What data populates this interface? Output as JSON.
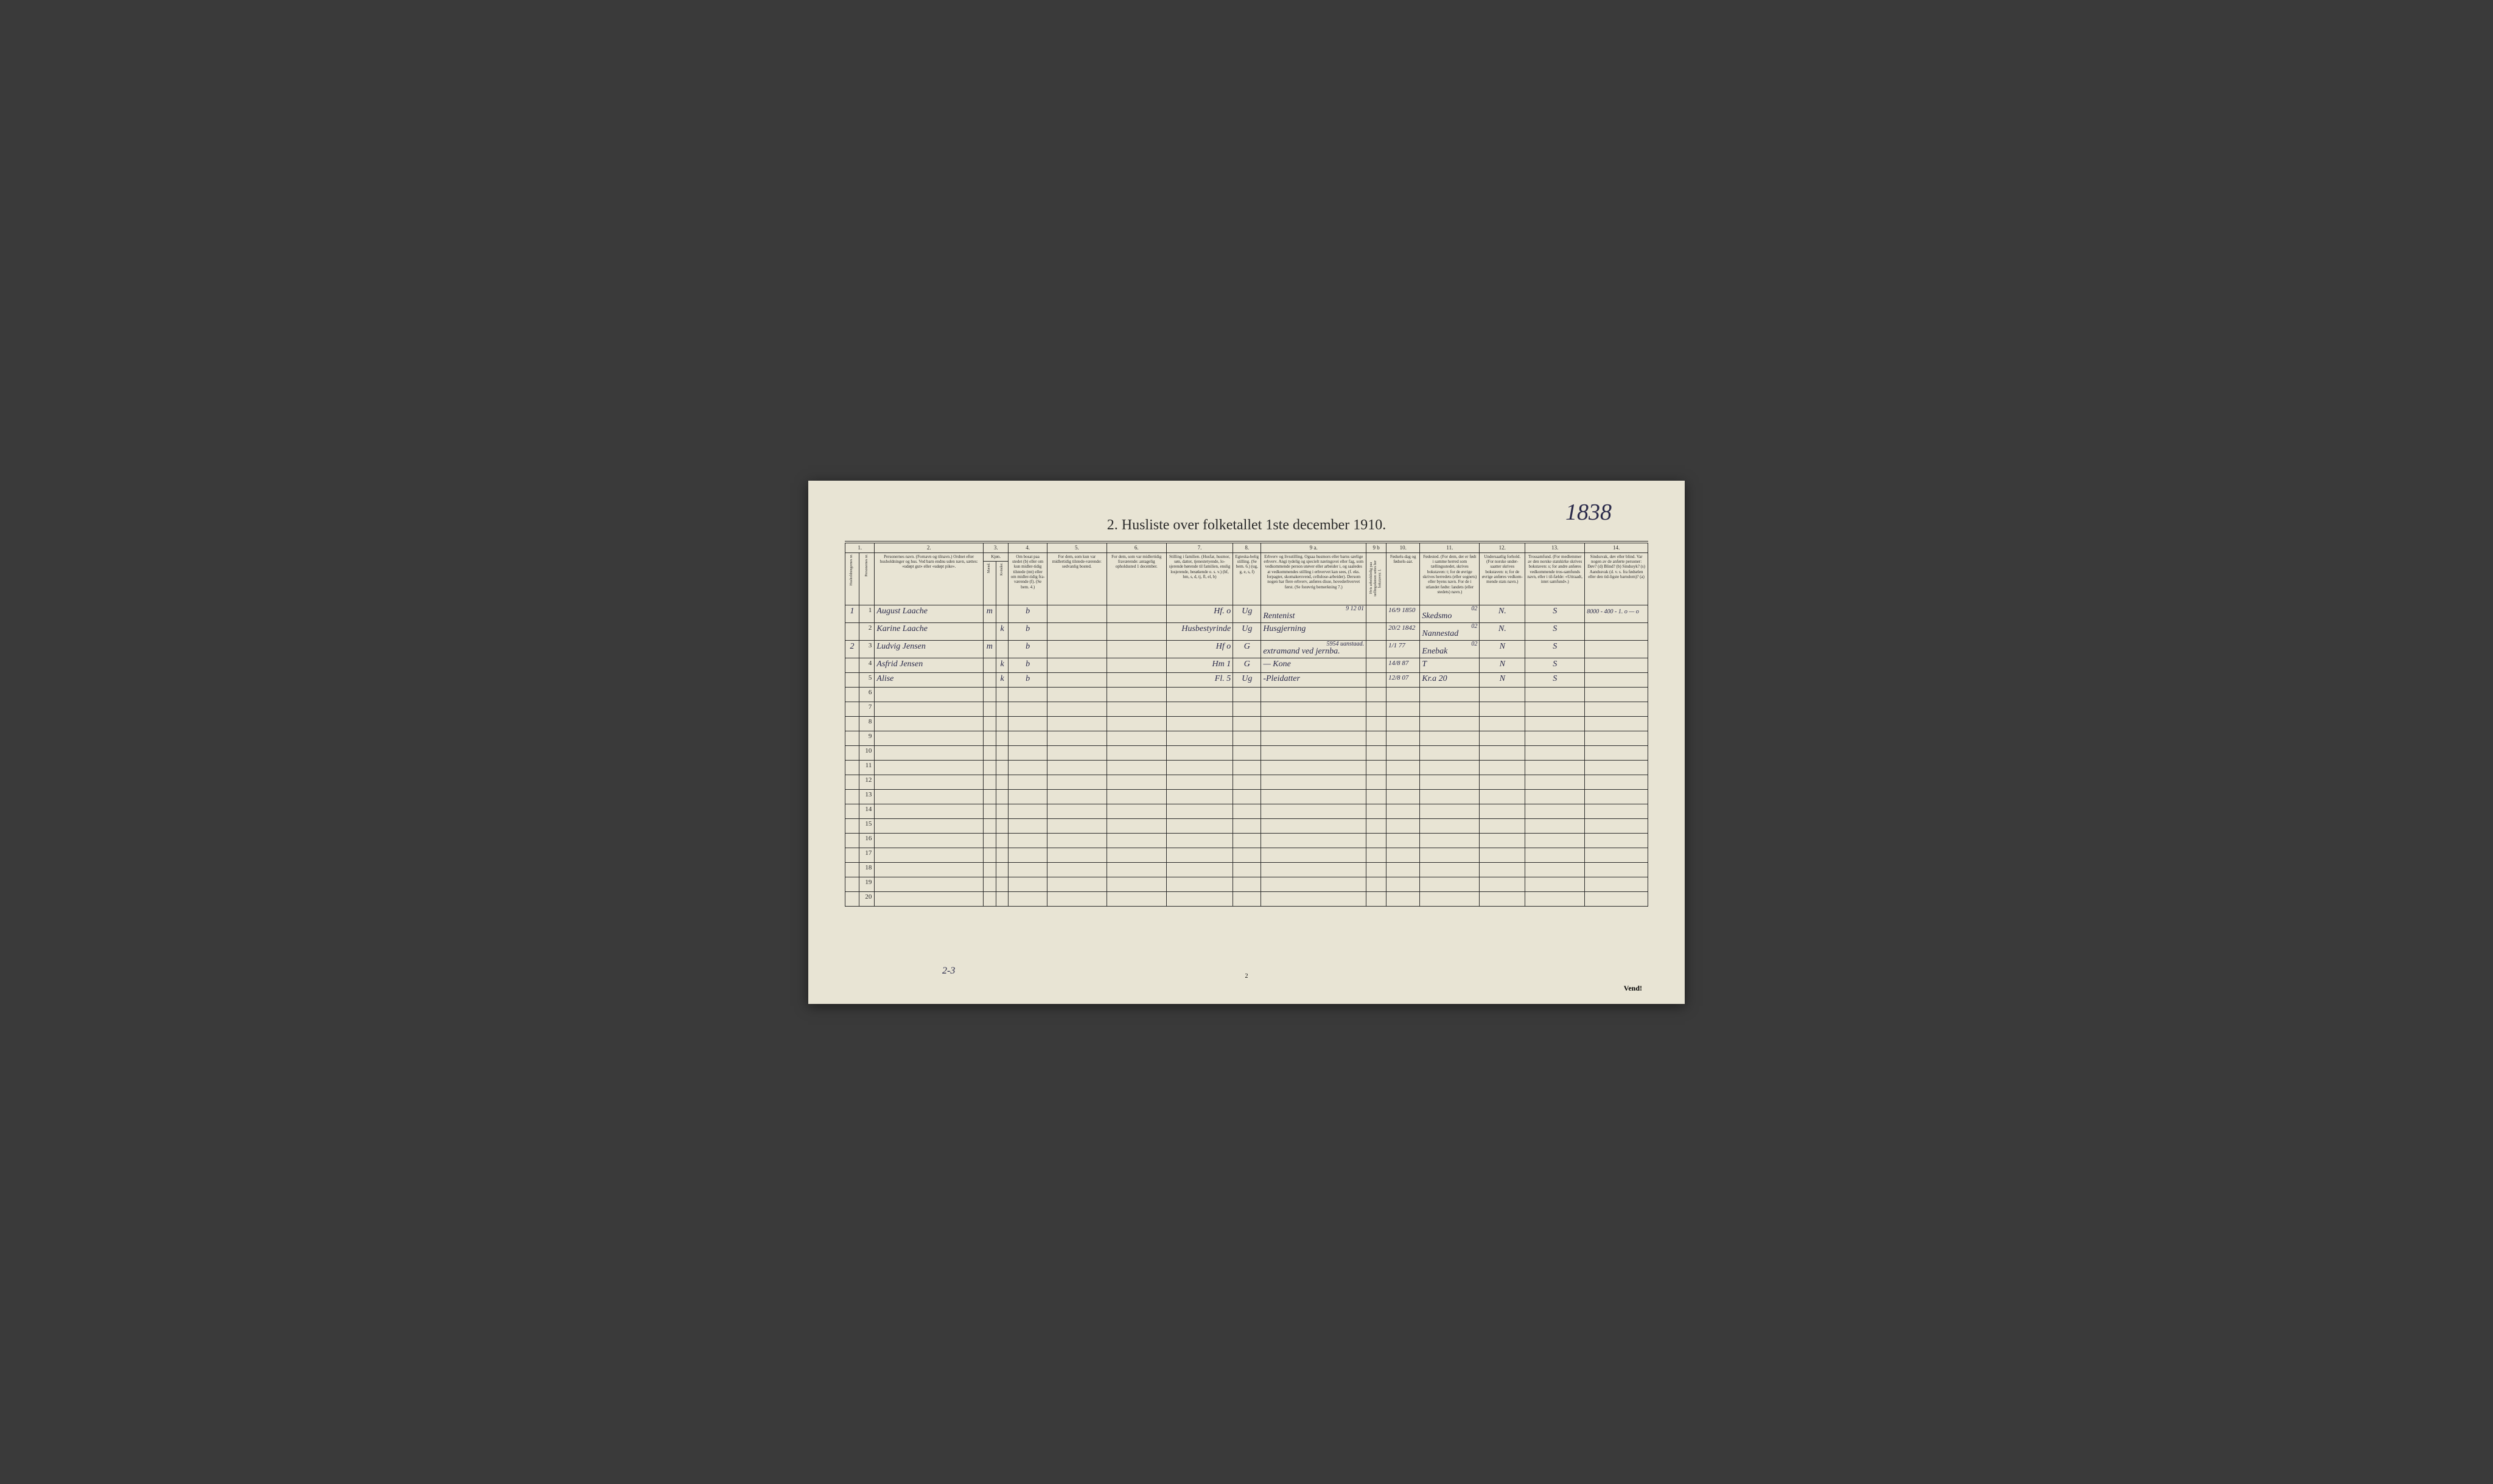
{
  "annotation_number": "1838",
  "title": "2.  Husliste over folketallet 1ste december 1910.",
  "column_numbers": [
    "1.",
    "2.",
    "3.",
    "4.",
    "5.",
    "6.",
    "7.",
    "8.",
    "9 a.",
    "9 b",
    "10.",
    "11.",
    "12.",
    "13.",
    "14."
  ],
  "headers": {
    "c1a": "Husholdningernes nr.",
    "c1b": "Personernes nr.",
    "c2": "Personernes navn.\n(Fornavn og tilnavn.)\nOrdnet efter husholdninger og hus.\nVed barn endnu uden navn, sættes: «udøpt gut» eller «udøpt pike».",
    "c3": "Kjøn.",
    "c3m": "Mænd.",
    "c3k": "Kvinder.",
    "c3mk": "m.   k.",
    "c4": "Om bosat paa stedet (b) eller om kun midler-tidig tilstede (mt) eller om midler-tidig fra-værende (f).\n(Se bem. 4.)",
    "c5": "For dem, som kun var midlertidig tilstede-værende:\nsedvanlig bosted.",
    "c6": "For dem, som var midlertidig fraværende:\nantagelig opholdssted 1 december.",
    "c7": "Stilling i familien.\n(Husfar, husmor, søn, datter, tjenestetyende, lo-sjerende hørende til familien, enslig losjerende, besøkende o. s. v.)\n(hf, hm, s, d, tj, fl, el, b)",
    "c8": "Egteska-belig stilling.\n(Se bem. 6.)\n(ug, g, e, s, f)",
    "c9a": "Erhverv og livsstilling.\nOgsaa husmors eller barns særlige erhverv.\nAngi tydelig og specielt næringsvei eller fag, som vedkommende person utøver eller arbeider i, og saaledes at vedkommendes stilling i erhvervet kan sees, (f. eks. forpagter, skomakersvend, cellulose-arbeider). Dersom nogen har flere erhverv, anføres disse, hovederhvervet først.\n(Se forøvrig bemerkning 7.)",
    "c9b": "Hvis arbeidsledig paa tællingsdatoen settes her bokstaven: l.",
    "c10": "Fødsels-dag og fødsels-aar.",
    "c11": "Fødested.\n(For dem, der er født i samme herred som tællingsstedet, skrives bokstaven: t; for de øvrige skrives herredets (eller sognets) eller byens navn.\nFor de i utlandet fødte: landets (eller stedets) navn.)",
    "c12": "Undersaatlig forhold.\n(For norske under-saatter skrives bokstaven: n; for de øvrige anføres vedkom-mende stats navn.)",
    "c13": "Trossamfund.\n(For medlemmer av den norske statskirke skrives bokstaven: s; for andre anføres vedkommende tros-samfunds navn, eller i til-fælde: «Uttraadt, intet samfund».)",
    "c14": "Sindssvak, døv eller blind.\nVar nogen av de anførte personer:\nDøv?         (d)\nBlind?       (b)\nSindssyk?   (s)\nAandssvak (d. v. s. fra fødselen eller den tid-ligste barndom)?  (a)"
  },
  "rows": [
    {
      "hh": "1",
      "pn": "1",
      "name": "August Laache",
      "m": "m",
      "k": "",
      "res": "b",
      "c5": "",
      "c6": "",
      "fam": "Hf.      o",
      "mar": "Ug",
      "occ": "Rentenist",
      "wl": "",
      "dob": "16/9 1850",
      "pob": "Skedsmo",
      "nat": "N.",
      "rel": "S",
      "dis": "",
      "topnote": "9 12 01",
      "pobnote": "02",
      "extra": "8000 - 400 - 1.    o  —  o"
    },
    {
      "hh": "",
      "pn": "2",
      "name": "Karine Laache",
      "m": "",
      "k": "k",
      "res": "b",
      "c5": "",
      "c6": "",
      "fam": "Husbestyrinde",
      "mar": "Ug",
      "occ": "Husgjerning",
      "wl": "",
      "dob": "20/2 1842",
      "pob": "Nannestad",
      "nat": "N.",
      "rel": "S",
      "dis": "",
      "pobnote": "02"
    },
    {
      "hh": "2",
      "pn": "3",
      "name": "Ludvig Jensen",
      "m": "m",
      "k": "",
      "res": "b",
      "c5": "",
      "c6": "",
      "fam": "Hf     o",
      "mar": "G",
      "occ": "extramand ved jernba.",
      "wl": "",
      "dob": "1/1 77",
      "pob": "Enebak",
      "nat": "N",
      "rel": "S",
      "dis": "",
      "topnote": "5954  uanstaad.",
      "pobnote": "02"
    },
    {
      "hh": "",
      "pn": "4",
      "name": "Asfrid Jensen",
      "m": "",
      "k": "k",
      "res": "b",
      "c5": "",
      "c6": "",
      "fam": "Hm    1",
      "mar": "G",
      "occ": "—  Kone",
      "wl": "",
      "dob": "14/8 87",
      "pob": "T",
      "nat": "N",
      "rel": "S",
      "dis": ""
    },
    {
      "hh": "",
      "pn": "5",
      "name": "Alise",
      "m": "",
      "k": "k",
      "res": "b",
      "c5": "",
      "c6": "",
      "fam": "Fl.       5",
      "mar": "Ug",
      "occ": "-Pleidatter",
      "wl": "",
      "dob": "12/8 07",
      "pob": "Kr.a 20",
      "nat": "N",
      "rel": "S",
      "dis": ""
    }
  ],
  "empty_row_count": 15,
  "footer_mk": "2-3",
  "page_num": "2",
  "vend": "Vend!",
  "colors": {
    "paper": "#e8e4d4",
    "ink": "#2a2a2a",
    "handwriting": "#2a2a4a",
    "background": "#3a3a3a"
  }
}
